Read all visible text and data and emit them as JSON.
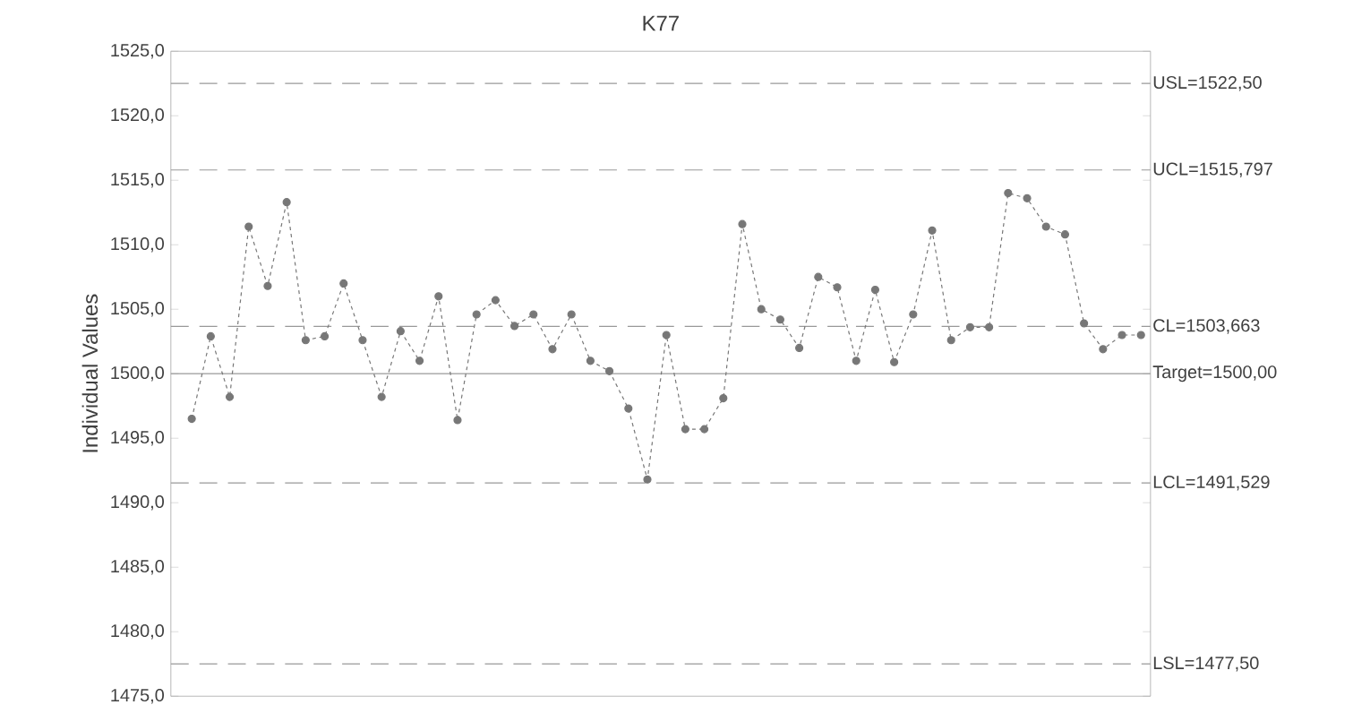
{
  "chart_data": {
    "type": "line",
    "title": "K77",
    "ylabel": "Individual Values",
    "categories": [
      null,
      null,
      null,
      null,
      null,
      null,
      null,
      null,
      null,
      null,
      null,
      null,
      null,
      null,
      null,
      null,
      null,
      null,
      null,
      null,
      null,
      null,
      null,
      null,
      null,
      null,
      null,
      null,
      null,
      null,
      null,
      null,
      null,
      null,
      null,
      null,
      null,
      null,
      null,
      null,
      null,
      null,
      null,
      null,
      null,
      null,
      null,
      null,
      null,
      null,
      null
    ],
    "series": [
      {
        "color": "#777777",
        "values": [
          1496.5,
          1502.9,
          1498.2,
          1511.4,
          1506.8,
          1513.3,
          1502.6,
          1502.9,
          1507.0,
          1502.6,
          1498.2,
          1503.3,
          1501.0,
          1506.0,
          1496.4,
          1504.6,
          1505.7,
          1503.7,
          1504.6,
          1501.9,
          1504.6,
          1501.0,
          1500.2,
          1497.3,
          1491.8,
          1503.0,
          1495.7,
          1495.7,
          1498.1,
          1511.6,
          1505.0,
          1504.2,
          1502.0,
          1507.5,
          1506.7,
          1501.0,
          1506.5,
          1500.9,
          1504.6,
          1511.1,
          1502.6,
          1503.6,
          1503.6,
          1514.0,
          1513.6,
          1511.4,
          1510.8,
          1503.9,
          1501.9,
          1503.0,
          1503.0
        ]
      }
    ],
    "marker": "circle",
    "line_style": "dashed",
    "grid": false,
    "tick_labels": "y",
    "ylim": [
      1475,
      1525
    ],
    "yticks": [
      {
        "value": 1475,
        "label": "1475,0"
      },
      {
        "value": 1480,
        "label": "1480,0"
      },
      {
        "value": 1485,
        "label": "1485,0"
      },
      {
        "value": 1490,
        "label": "1490,0"
      },
      {
        "value": 1495,
        "label": "1495,0"
      },
      {
        "value": 1500,
        "label": "1500,0"
      },
      {
        "value": 1505,
        "label": "1505,0"
      },
      {
        "value": 1510,
        "label": "1510,0"
      },
      {
        "value": 1515,
        "label": "1515,0"
      },
      {
        "value": 1520,
        "label": "1520,0"
      },
      {
        "value": 1525,
        "label": "1525,0"
      }
    ],
    "ref_lines": [
      {
        "axis": "y",
        "value": 1522.5,
        "label": "USL=1522,50",
        "line_style": "dashed"
      },
      {
        "axis": "y",
        "value": 1515.797,
        "label": "UCL=1515,797",
        "line_style": "dashed"
      },
      {
        "axis": "y",
        "value": 1503.663,
        "label": "CL=1503,663",
        "line_style": "dashed"
      },
      {
        "axis": "y",
        "value": 1500,
        "label": "Target=1500,00",
        "line_style": "solid"
      },
      {
        "axis": "y",
        "value": 1491.529,
        "label": "LCL=1491,529",
        "line_style": "dashed"
      },
      {
        "axis": "y",
        "value": 1477.5,
        "label": "LSL=1477,50",
        "line_style": "dashed"
      }
    ]
  }
}
